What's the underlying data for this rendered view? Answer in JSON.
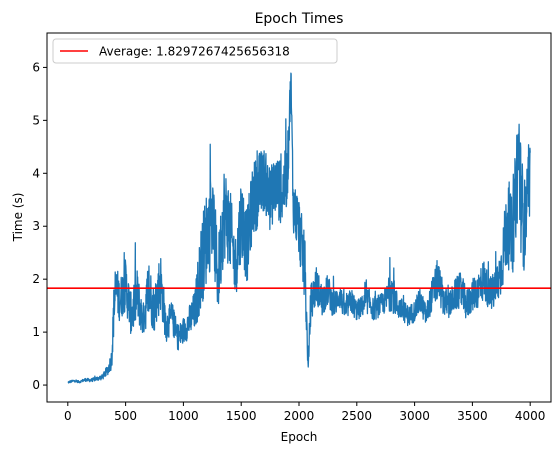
{
  "chart_data": {
    "type": "line",
    "title": "Epoch Times",
    "xlabel": "Epoch",
    "ylabel": "Time (s)",
    "xlim": [
      -180,
      4180
    ],
    "ylim": [
      -0.32,
      6.65
    ],
    "xticks": [
      0,
      500,
      1000,
      1500,
      2000,
      2500,
      3000,
      3500,
      4000
    ],
    "yticks": [
      0,
      1,
      2,
      3,
      4,
      5,
      6
    ],
    "grid": false,
    "legend_position": "top-left",
    "average_label": "Average: 1.8297267425656318",
    "average_value": 1.8297267425656318,
    "colors": {
      "series": "#1f77b4",
      "average": "#ff0000"
    },
    "series": [
      {
        "x": [
          0,
          50,
          100,
          150,
          200,
          250,
          300,
          350,
          380,
          400,
          420,
          450,
          500,
          550,
          600,
          650,
          700,
          750,
          800,
          850,
          900,
          950,
          1000,
          1050,
          1100,
          1150,
          1200,
          1250,
          1300,
          1350,
          1400,
          1450,
          1500,
          1550,
          1600,
          1650,
          1700,
          1750,
          1800,
          1850,
          1900,
          1930,
          1950,
          2000,
          2050,
          2080,
          2100,
          2150,
          2200,
          2250,
          2300,
          2350,
          2400,
          2450,
          2500,
          2550,
          2600,
          2650,
          2700,
          2750,
          2800,
          2850,
          2900,
          2950,
          3000,
          3050,
          3100,
          3150,
          3200,
          3250,
          3300,
          3350,
          3400,
          3450,
          3500,
          3550,
          3600,
          3650,
          3700,
          3750,
          3800,
          3850,
          3900,
          3920,
          3950,
          4000
        ],
        "y": [
          0.05,
          0.08,
          0.06,
          0.1,
          0.09,
          0.12,
          0.15,
          0.3,
          0.5,
          1.5,
          1.8,
          1.6,
          1.9,
          1.3,
          1.7,
          1.2,
          1.8,
          1.4,
          2.0,
          1.1,
          1.3,
          0.9,
          1.0,
          1.2,
          1.4,
          2.2,
          2.8,
          3.2,
          2.0,
          3.3,
          3.0,
          2.2,
          3.2,
          2.6,
          3.5,
          3.7,
          3.9,
          3.5,
          3.8,
          3.6,
          4.0,
          5.8,
          3.4,
          3.0,
          2.2,
          0.3,
          1.5,
          1.9,
          1.6,
          1.8,
          1.5,
          1.7,
          1.4,
          1.6,
          1.4,
          1.5,
          1.6,
          1.4,
          1.5,
          1.6,
          1.8,
          1.5,
          1.4,
          1.3,
          1.4,
          1.6,
          1.3,
          1.7,
          2.0,
          1.6,
          1.5,
          1.7,
          1.8,
          1.5,
          1.7,
          1.8,
          2.0,
          1.7,
          1.8,
          2.2,
          3.0,
          2.8,
          4.5,
          3.5,
          3.0,
          3.8
        ],
        "noise": [
          0.02,
          0.02,
          0.02,
          0.03,
          0.03,
          0.04,
          0.05,
          0.1,
          0.2,
          0.5,
          0.5,
          0.4,
          0.5,
          0.4,
          0.5,
          0.3,
          0.6,
          0.4,
          0.6,
          0.3,
          0.3,
          0.25,
          0.25,
          0.3,
          0.4,
          0.8,
          0.9,
          0.9,
          0.7,
          0.9,
          0.8,
          0.6,
          0.8,
          0.7,
          0.7,
          0.7,
          0.6,
          0.6,
          0.6,
          0.6,
          0.6,
          0.4,
          0.5,
          0.6,
          0.6,
          0.15,
          0.4,
          0.35,
          0.3,
          0.3,
          0.25,
          0.25,
          0.2,
          0.25,
          0.2,
          0.2,
          0.25,
          0.2,
          0.2,
          0.25,
          0.4,
          0.25,
          0.2,
          0.2,
          0.2,
          0.25,
          0.2,
          0.3,
          0.4,
          0.3,
          0.25,
          0.3,
          0.35,
          0.3,
          0.3,
          0.35,
          0.4,
          0.3,
          0.4,
          0.5,
          0.8,
          0.7,
          1.2,
          1.0,
          0.9,
          0.6
        ]
      }
    ]
  }
}
